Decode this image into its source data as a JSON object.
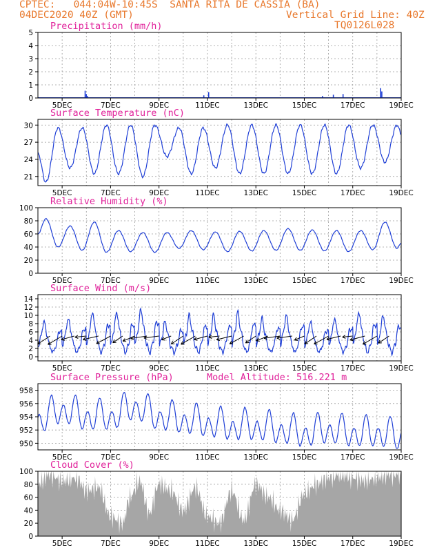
{
  "header": {
    "line1": "CPTEC:   044:04W-10:45S  SANTA RITA DE CASSIA (BA)",
    "line2_left": "04DEC2020 40Z (GMT)",
    "line2_right": "Vertical Grid Line: 40Z",
    "line3_right": "TQ0126L028"
  },
  "colors": {
    "header": "#e8782c",
    "title": "#e0219a",
    "line": "#1f3fd6",
    "cloud": "#a6a6a6",
    "grid": "#9a9a9a"
  },
  "x_tick_labels": [
    "5DEC",
    "7DEC",
    "9DEC",
    "11DEC",
    "13DEC",
    "15DEC",
    "17DEC",
    "19DEC"
  ],
  "chart_data": [
    {
      "type": "bar",
      "title": "Precipitation (mm/h)",
      "yticks": [
        "0",
        "1",
        "2",
        "3",
        "4",
        "5"
      ],
      "ylim": [
        0,
        5
      ],
      "x_unit": "days since 04DEC 00Z",
      "xlim": [
        0,
        15
      ],
      "events": [
        {
          "x": 1.95,
          "y": 0.55
        },
        {
          "x": 2.0,
          "y": 0.3
        },
        {
          "x": 2.05,
          "y": 0.15
        },
        {
          "x": 6.85,
          "y": 0.2
        },
        {
          "x": 7.05,
          "y": 0.45
        },
        {
          "x": 11.75,
          "y": 0.15
        },
        {
          "x": 12.2,
          "y": 0.25
        },
        {
          "x": 12.6,
          "y": 0.3
        },
        {
          "x": 14.15,
          "y": 0.75
        },
        {
          "x": 14.2,
          "y": 0.5
        }
      ]
    },
    {
      "type": "line",
      "title": "Surface Temperature (nC)",
      "yticks": [
        "21",
        "24",
        "27",
        "30"
      ],
      "ylim": [
        19.4,
        31.0
      ],
      "x_unit": "days since 04DEC 00Z",
      "xlim": [
        0,
        15
      ],
      "min_x": [
        0.33,
        1.33,
        2.33,
        3.33,
        4.33,
        5.33,
        6.33,
        7.33,
        8.33,
        9.33,
        10.33,
        11.33,
        12.33,
        13.33,
        14.33
      ],
      "min_y": [
        20.0,
        22.5,
        21.5,
        21.5,
        21.0,
        24.5,
        21.5,
        22.5,
        21.5,
        21.5,
        21.5,
        21.5,
        21.5,
        22.5,
        23.5
      ],
      "max_x": [
        0.83,
        1.83,
        2.83,
        3.83,
        4.83,
        5.83,
        6.83,
        7.83,
        8.83,
        9.83,
        10.83,
        11.83,
        12.83,
        13.83,
        14.83
      ],
      "max_y": [
        29.5,
        29.5,
        30.0,
        30.0,
        30.0,
        29.5,
        29.5,
        30.0,
        30.0,
        30.0,
        30.0,
        30.0,
        30.0,
        30.0,
        30.0
      ],
      "end_y": 28.5
    },
    {
      "type": "line",
      "title": "Relative Humidity (%)",
      "yticks": [
        "0",
        "20",
        "40",
        "60",
        "80",
        "100"
      ],
      "ylim": [
        0,
        100
      ],
      "x_unit": "days since 04DEC 00Z",
      "xlim": [
        0,
        15
      ],
      "min_x": [
        0.83,
        1.83,
        2.83,
        3.83,
        4.83,
        5.83,
        6.83,
        7.83,
        8.83,
        9.83,
        10.83,
        11.83,
        12.83,
        13.83,
        14.83
      ],
      "min_y": [
        40,
        35,
        32,
        33,
        32,
        38,
        36,
        33,
        34,
        35,
        35,
        34,
        33,
        36,
        38
      ],
      "max_x": [
        0.33,
        1.33,
        2.33,
        3.33,
        4.33,
        5.33,
        6.33,
        7.33,
        8.33,
        9.33,
        10.33,
        11.33,
        12.33,
        13.33,
        14.33
      ],
      "max_y": [
        83,
        72,
        78,
        65,
        62,
        62,
        65,
        63,
        64,
        65,
        68,
        66,
        65,
        65,
        78
      ],
      "end_y": 46
    },
    {
      "type": "line",
      "title": "Surface Wind (m/s)",
      "yticks": [
        "0",
        "2",
        "4",
        "6",
        "8",
        "10",
        "12",
        "14"
      ],
      "ylim": [
        -1,
        15
      ],
      "x_unit": "days since 04DEC 00Z",
      "xlim": [
        0,
        15
      ],
      "day_pattern": [
        2.5,
        5.5,
        10,
        6,
        2.5,
        1,
        3,
        7
      ],
      "day_amp": [
        1.0,
        1.1,
        1.3,
        1.3,
        1.4,
        1.0,
        1.2,
        1.2,
        1.3,
        1.1,
        1.2,
        1.0,
        1.1,
        1.3,
        1.2
      ],
      "arrows_every_days": 0.5,
      "arrow_y": 5
    },
    {
      "type": "line",
      "title": "Surface Pressure (hPa)",
      "annotation": "Model Altitude: 516.221 m",
      "yticks": [
        "950",
        "952",
        "954",
        "956",
        "958"
      ],
      "ylim": [
        949.0,
        959.0
      ],
      "x_unit": "days since 04DEC 00Z",
      "xlim": [
        0,
        15
      ],
      "diurnal_max_x_offset": 0.55,
      "trend": [
        953.5,
        955.0,
        954.0,
        954.0,
        955.5,
        954.0,
        953.5,
        953.0,
        952.5,
        952.5,
        952.0,
        951.5,
        952.0,
        951.5,
        951.5,
        951.0
      ],
      "amp": 2.6
    },
    {
      "type": "area",
      "title": "Cloud Cover (%)",
      "yticks": [
        "0",
        "20",
        "40",
        "60",
        "80",
        "100"
      ],
      "ylim": [
        0,
        100
      ],
      "x_unit": "days since 04DEC 00Z",
      "xlim": [
        0,
        15
      ],
      "segments_x": [
        0,
        0.5,
        1.0,
        1.6,
        2.0,
        2.5,
        3.0,
        3.5,
        3.8,
        4.2,
        4.6,
        5.0,
        5.5,
        6.0,
        6.5,
        7.0,
        7.5,
        8.0,
        8.5,
        9.0,
        9.5,
        10.0,
        10.5,
        11.0,
        11.5,
        12.0,
        12.5,
        13.0,
        13.5,
        14.0,
        14.5,
        15.0
      ],
      "segments_y": [
        80,
        95,
        85,
        90,
        70,
        75,
        30,
        20,
        60,
        85,
        35,
        80,
        70,
        40,
        75,
        30,
        20,
        70,
        25,
        80,
        60,
        40,
        25,
        65,
        80,
        90,
        95,
        90,
        85,
        90,
        95,
        95
      ]
    }
  ]
}
